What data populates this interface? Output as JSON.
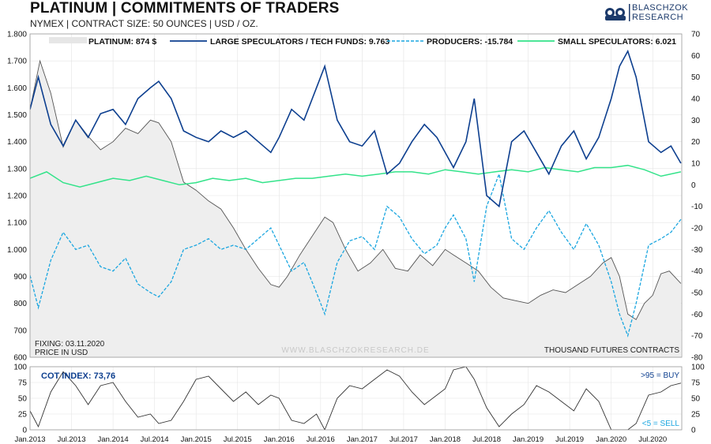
{
  "header": {
    "title": "PLATINUM | COMMITMENTS OF TRADERS",
    "subtitle": "NYMEX | CONTRACT SIZE: 50 OUNCES | USD / OZ.",
    "logo_line1": "BLASCHZOK",
    "logo_line2": "RESEARCH"
  },
  "colors": {
    "price_fill": "#eeeeee",
    "price_line": "#555555",
    "large_specs": "#0d3f8f",
    "producers": "#1aa6e0",
    "small_specs": "#33e38a",
    "cot_line": "#333333",
    "buy": "#0d3f8f",
    "sell": "#1aa6e0"
  },
  "chart_data": [
    {
      "type": "line",
      "title": "PLATINUM | COMMITMENTS OF TRADERS",
      "left_axis": {
        "label": "PRICE IN USD",
        "range": [
          600,
          1800
        ],
        "ticks": [
          "600",
          "700",
          "800",
          "900",
          "1.000",
          "1.100",
          "1.200",
          "1.300",
          "1.400",
          "1.500",
          "1.600",
          "1.700",
          "1.800"
        ]
      },
      "right_axis": {
        "label": "THOUSAND FUTURES CONTRACTS",
        "range": [
          -80,
          70
        ],
        "ticks": [
          "-80",
          "-70",
          "-60",
          "-50",
          "-40",
          "-30",
          "-20",
          "-10",
          "0",
          "10",
          "20",
          "30",
          "40",
          "50",
          "60",
          "70"
        ]
      },
      "x_ticks": [
        "Jan.2013",
        "Jul.2013",
        "Jan.2014",
        "Jul.2014",
        "Jan.2015",
        "Jul.2015",
        "Jan.2016",
        "Jul.2016",
        "Jan.2017",
        "Jul.2017",
        "Jan.2018",
        "Jul.2018",
        "Jan.2019",
        "Jul.2019",
        "Jan.2020",
        "Jul.2020"
      ],
      "legend": [
        {
          "key": "price",
          "label": "PLATINUM: 874 $"
        },
        {
          "key": "large",
          "label": "LARGE SPECULATORS / TECH FUNDS: 9.763"
        },
        {
          "key": "producers",
          "label": "PRODUCERS: -15.784"
        },
        {
          "key": "small",
          "label": "SMALL SPECULATORS: 6.021"
        }
      ],
      "annotations": {
        "fixing": "FIXING: 03.11.2020",
        "price_unit": "PRICE IN USD",
        "watermark": "WWW.BLASCHZOKRESEARCH.DE",
        "contracts_unit": "THOUSAND FUTURES CONTRACTS"
      },
      "time_range": [
        2013.0,
        2020.85
      ],
      "series": [
        {
          "name": "Platinum price (USD)",
          "axis": "left",
          "t": [
            2013.0,
            2013.12,
            2013.25,
            2013.4,
            2013.55,
            2013.7,
            2013.85,
            2014.0,
            2014.15,
            2014.3,
            2014.45,
            2014.55,
            2014.7,
            2014.85,
            2015.0,
            2015.15,
            2015.3,
            2015.45,
            2015.6,
            2015.75,
            2015.9,
            2016.0,
            2016.1,
            2016.25,
            2016.4,
            2016.55,
            2016.65,
            2016.8,
            2016.95,
            2017.1,
            2017.25,
            2017.4,
            2017.55,
            2017.7,
            2017.85,
            2018.0,
            2018.1,
            2018.25,
            2018.4,
            2018.55,
            2018.7,
            2018.85,
            2019.0,
            2019.15,
            2019.3,
            2019.45,
            2019.6,
            2019.75,
            2019.9,
            2020.0,
            2020.1,
            2020.2,
            2020.3,
            2020.4,
            2020.5,
            2020.6,
            2020.7,
            2020.84
          ],
          "values": [
            1520,
            1700,
            1580,
            1380,
            1480,
            1420,
            1370,
            1400,
            1450,
            1430,
            1480,
            1470,
            1400,
            1250,
            1220,
            1180,
            1150,
            1080,
            1000,
            930,
            870,
            860,
            900,
            980,
            1050,
            1120,
            1100,
            1000,
            920,
            950,
            1000,
            930,
            920,
            980,
            940,
            1000,
            980,
            950,
            920,
            860,
            820,
            810,
            800,
            830,
            850,
            840,
            870,
            900,
            950,
            970,
            900,
            760,
            740,
            800,
            830,
            910,
            920,
            874
          ]
        },
        {
          "name": "Large speculators (k)",
          "axis": "right",
          "t": [
            2013.0,
            2013.1,
            2013.25,
            2013.4,
            2013.55,
            2013.7,
            2013.85,
            2014.0,
            2014.15,
            2014.3,
            2014.45,
            2014.55,
            2014.7,
            2014.85,
            2015.0,
            2015.15,
            2015.3,
            2015.45,
            2015.6,
            2015.75,
            2015.9,
            2016.0,
            2016.15,
            2016.3,
            2016.45,
            2016.55,
            2016.7,
            2016.85,
            2017.0,
            2017.15,
            2017.3,
            2017.45,
            2017.6,
            2017.75,
            2017.9,
            2018.0,
            2018.1,
            2018.25,
            2018.35,
            2018.5,
            2018.65,
            2018.8,
            2018.95,
            2019.1,
            2019.25,
            2019.4,
            2019.55,
            2019.7,
            2019.85,
            2020.0,
            2020.1,
            2020.2,
            2020.3,
            2020.45,
            2020.6,
            2020.72,
            2020.84
          ],
          "values": [
            35,
            50,
            28,
            18,
            30,
            22,
            33,
            35,
            28,
            40,
            45,
            48,
            40,
            25,
            22,
            20,
            25,
            22,
            25,
            20,
            15,
            22,
            35,
            30,
            45,
            55,
            30,
            20,
            18,
            25,
            5,
            10,
            20,
            28,
            22,
            15,
            8,
            20,
            40,
            -5,
            -10,
            20,
            25,
            15,
            5,
            18,
            25,
            12,
            22,
            40,
            55,
            62,
            50,
            20,
            15,
            18,
            10
          ]
        },
        {
          "name": "Producers (k)",
          "axis": "right",
          "t": [
            2013.0,
            2013.1,
            2013.25,
            2013.4,
            2013.55,
            2013.7,
            2013.85,
            2014.0,
            2014.15,
            2014.3,
            2014.45,
            2014.55,
            2014.7,
            2014.85,
            2015.0,
            2015.15,
            2015.3,
            2015.45,
            2015.6,
            2015.75,
            2015.9,
            2016.0,
            2016.15,
            2016.3,
            2016.45,
            2016.55,
            2016.7,
            2016.85,
            2017.0,
            2017.15,
            2017.3,
            2017.45,
            2017.6,
            2017.75,
            2017.9,
            2018.0,
            2018.1,
            2018.25,
            2018.35,
            2018.5,
            2018.65,
            2018.8,
            2018.95,
            2019.1,
            2019.25,
            2019.4,
            2019.55,
            2019.7,
            2019.85,
            2020.0,
            2020.1,
            2020.2,
            2020.3,
            2020.45,
            2020.6,
            2020.72,
            2020.84
          ],
          "values": [
            -42,
            -57,
            -35,
            -22,
            -30,
            -28,
            -38,
            -40,
            -34,
            -46,
            -50,
            -52,
            -45,
            -30,
            -28,
            -25,
            -30,
            -28,
            -30,
            -25,
            -20,
            -28,
            -40,
            -36,
            -50,
            -60,
            -36,
            -26,
            -24,
            -30,
            -10,
            -15,
            -25,
            -32,
            -28,
            -20,
            -14,
            -25,
            -45,
            -10,
            5,
            -25,
            -30,
            -20,
            -12,
            -22,
            -30,
            -18,
            -28,
            -45,
            -60,
            -70,
            -55,
            -28,
            -25,
            -22,
            -16
          ]
        },
        {
          "name": "Small speculators (k)",
          "axis": "right",
          "t": [
            2013.0,
            2013.2,
            2013.4,
            2013.6,
            2013.8,
            2014.0,
            2014.2,
            2014.4,
            2014.6,
            2014.8,
            2015.0,
            2015.2,
            2015.4,
            2015.6,
            2015.8,
            2016.0,
            2016.2,
            2016.4,
            2016.6,
            2016.8,
            2017.0,
            2017.2,
            2017.4,
            2017.6,
            2017.8,
            2018.0,
            2018.2,
            2018.4,
            2018.6,
            2018.8,
            2019.0,
            2019.2,
            2019.4,
            2019.6,
            2019.8,
            2020.0,
            2020.2,
            2020.4,
            2020.6,
            2020.84
          ],
          "values": [
            3,
            6,
            1,
            -1,
            1,
            3,
            2,
            4,
            2,
            0,
            1,
            3,
            2,
            3,
            1,
            2,
            3,
            3,
            4,
            5,
            4,
            5,
            6,
            6,
            5,
            7,
            6,
            5,
            6,
            7,
            6,
            8,
            7,
            6,
            8,
            8,
            9,
            7,
            4,
            6
          ]
        }
      ]
    },
    {
      "type": "line",
      "title": "COT INDEX: 73,76",
      "range": [
        0,
        100
      ],
      "ticks": [
        "0",
        "25",
        "50",
        "75",
        "100"
      ],
      "buy_label": ">95 = BUY",
      "sell_label": "<5 = SELL",
      "t": [
        2013.0,
        2013.1,
        2013.25,
        2013.4,
        2013.55,
        2013.7,
        2013.85,
        2014.0,
        2014.15,
        2014.3,
        2014.45,
        2014.55,
        2014.7,
        2014.85,
        2015.0,
        2015.15,
        2015.3,
        2015.45,
        2015.6,
        2015.75,
        2015.9,
        2016.0,
        2016.15,
        2016.3,
        2016.45,
        2016.55,
        2016.7,
        2016.85,
        2017.0,
        2017.15,
        2017.3,
        2017.45,
        2017.6,
        2017.75,
        2017.9,
        2018.0,
        2018.1,
        2018.25,
        2018.35,
        2018.5,
        2018.65,
        2018.8,
        2018.95,
        2019.1,
        2019.25,
        2019.4,
        2019.55,
        2019.7,
        2019.85,
        2020.0,
        2020.1,
        2020.2,
        2020.3,
        2020.45,
        2020.6,
        2020.72,
        2020.84
      ],
      "values": [
        30,
        5,
        60,
        92,
        70,
        40,
        70,
        75,
        45,
        20,
        25,
        10,
        15,
        45,
        80,
        85,
        65,
        45,
        60,
        40,
        55,
        50,
        15,
        10,
        25,
        0,
        50,
        70,
        65,
        80,
        95,
        85,
        60,
        40,
        55,
        65,
        95,
        100,
        80,
        35,
        5,
        25,
        40,
        70,
        60,
        45,
        30,
        65,
        45,
        0,
        0,
        0,
        10,
        55,
        60,
        70,
        74
      ]
    }
  ]
}
